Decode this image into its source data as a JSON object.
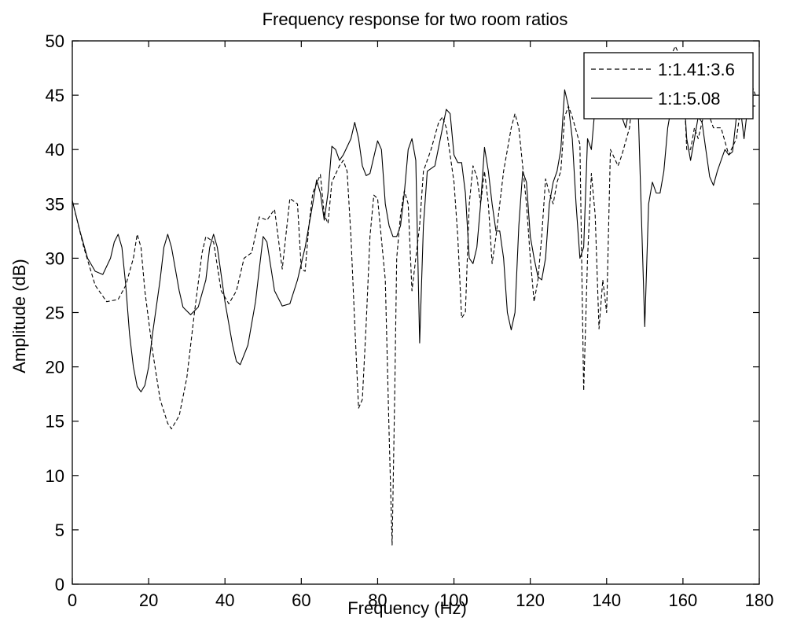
{
  "chart_data": {
    "type": "line",
    "title": "Frequency response for two room ratios",
    "xlabel": "Frequency (Hz)",
    "ylabel": "Amplitude (dB)",
    "xlim": [
      0,
      180
    ],
    "ylim": [
      0,
      50
    ],
    "xticks": [
      0,
      20,
      40,
      60,
      80,
      100,
      120,
      140,
      160,
      180
    ],
    "yticks": [
      0,
      5,
      10,
      15,
      20,
      25,
      30,
      35,
      40,
      45,
      50
    ],
    "grid": false,
    "legend_position": "top-right",
    "series": [
      {
        "name": "1:1.41:3.6",
        "style": "dashed",
        "color": "#000000",
        "points": [
          [
            0,
            35.3
          ],
          [
            3,
            31
          ],
          [
            6,
            27.5
          ],
          [
            9,
            26
          ],
          [
            12,
            26.2
          ],
          [
            14,
            27.5
          ],
          [
            16,
            30
          ],
          [
            17,
            32.2
          ],
          [
            18,
            31
          ],
          [
            19,
            27
          ],
          [
            21,
            21.5
          ],
          [
            23,
            17
          ],
          [
            25,
            14.8
          ],
          [
            26,
            14.3
          ],
          [
            28,
            15.5
          ],
          [
            30,
            19
          ],
          [
            32,
            25
          ],
          [
            34,
            30.5
          ],
          [
            35,
            32
          ],
          [
            37,
            31.5
          ],
          [
            39,
            27
          ],
          [
            41,
            25.8
          ],
          [
            43,
            27
          ],
          [
            45,
            30
          ],
          [
            47,
            30.5
          ],
          [
            49,
            33.8
          ],
          [
            51,
            33.5
          ],
          [
            53,
            34.5
          ],
          [
            55,
            29
          ],
          [
            57,
            35.5
          ],
          [
            59,
            35
          ],
          [
            60,
            29
          ],
          [
            61,
            28.8
          ],
          [
            62,
            33
          ],
          [
            63,
            36
          ],
          [
            65,
            37.7
          ],
          [
            66,
            34
          ],
          [
            67,
            33.2
          ],
          [
            68,
            37
          ],
          [
            70,
            38.5
          ],
          [
            71,
            39
          ],
          [
            72,
            38
          ],
          [
            73,
            32
          ],
          [
            74,
            24
          ],
          [
            75,
            16.2
          ],
          [
            76,
            17
          ],
          [
            77,
            24
          ],
          [
            78,
            32
          ],
          [
            79,
            35.8
          ],
          [
            80,
            35.5
          ],
          [
            82,
            28
          ],
          [
            83,
            14
          ],
          [
            83.8,
            3.6
          ],
          [
            84.5,
            18
          ],
          [
            85,
            30
          ],
          [
            86,
            34
          ],
          [
            87,
            36.2
          ],
          [
            88,
            35
          ],
          [
            89,
            27
          ],
          [
            90,
            30
          ],
          [
            91,
            33
          ],
          [
            92,
            38
          ],
          [
            94,
            40
          ],
          [
            96,
            42.5
          ],
          [
            97,
            43
          ],
          [
            98,
            42
          ],
          [
            100,
            37
          ],
          [
            101,
            32
          ],
          [
            102,
            24.5
          ],
          [
            103,
            25
          ],
          [
            104,
            35
          ],
          [
            105,
            38.5
          ],
          [
            106,
            37.5
          ],
          [
            107,
            35
          ],
          [
            108,
            38
          ],
          [
            109,
            35
          ],
          [
            110,
            29.5
          ],
          [
            111,
            32
          ],
          [
            113,
            38
          ],
          [
            115,
            42
          ],
          [
            116,
            43.3
          ],
          [
            117,
            42
          ],
          [
            119,
            35
          ],
          [
            120,
            30
          ],
          [
            121,
            26
          ],
          [
            122,
            28
          ],
          [
            123,
            32
          ],
          [
            124,
            37.3
          ],
          [
            125,
            36
          ],
          [
            126,
            35
          ],
          [
            127,
            37
          ],
          [
            128,
            38
          ],
          [
            129,
            43
          ],
          [
            130,
            44
          ],
          [
            131,
            43
          ],
          [
            133,
            40.5
          ],
          [
            134,
            17.8
          ],
          [
            135,
            30
          ],
          [
            136,
            37.8
          ],
          [
            137,
            34
          ],
          [
            138,
            23.5
          ],
          [
            139,
            28
          ],
          [
            140,
            25
          ],
          [
            141,
            40
          ],
          [
            143,
            38.5
          ],
          [
            144,
            39.5
          ],
          [
            146,
            42
          ],
          [
            147,
            45.5
          ],
          [
            148,
            44
          ],
          [
            150,
            43.5
          ],
          [
            152,
            45.5
          ],
          [
            154,
            45
          ],
          [
            156,
            48
          ],
          [
            158,
            49.5
          ],
          [
            160,
            48
          ],
          [
            161,
            40
          ],
          [
            162,
            40
          ],
          [
            163,
            42
          ],
          [
            164,
            41
          ],
          [
            166,
            44
          ],
          [
            168,
            42
          ],
          [
            170,
            42
          ],
          [
            172,
            39.5
          ],
          [
            174,
            41
          ],
          [
            175,
            43.5
          ],
          [
            176,
            45
          ],
          [
            177,
            44.5
          ],
          [
            178,
            46
          ],
          [
            179,
            45
          ]
        ]
      },
      {
        "name": "1:1:5.08",
        "style": "solid",
        "color": "#000000",
        "points": [
          [
            0,
            35.3
          ],
          [
            2,
            32.5
          ],
          [
            4,
            30
          ],
          [
            6,
            28.8
          ],
          [
            8,
            28.5
          ],
          [
            10,
            30
          ],
          [
            11,
            31.5
          ],
          [
            12,
            32.2
          ],
          [
            13,
            31
          ],
          [
            14,
            27.5
          ],
          [
            15,
            23
          ],
          [
            16,
            20
          ],
          [
            17,
            18.2
          ],
          [
            18,
            17.7
          ],
          [
            19,
            18.3
          ],
          [
            20,
            20
          ],
          [
            21,
            23
          ],
          [
            23,
            28
          ],
          [
            24,
            31
          ],
          [
            25,
            32.2
          ],
          [
            26,
            31
          ],
          [
            27,
            29
          ],
          [
            28,
            27
          ],
          [
            29,
            25.5
          ],
          [
            31,
            24.8
          ],
          [
            33,
            25.5
          ],
          [
            35,
            28
          ],
          [
            36,
            31
          ],
          [
            37,
            32.2
          ],
          [
            38,
            31
          ],
          [
            40,
            26
          ],
          [
            42,
            22
          ],
          [
            43,
            20.5
          ],
          [
            44,
            20.2
          ],
          [
            46,
            22
          ],
          [
            48,
            26
          ],
          [
            49,
            29
          ],
          [
            50,
            32
          ],
          [
            51,
            31.5
          ],
          [
            53,
            27
          ],
          [
            55,
            25.6
          ],
          [
            57,
            25.8
          ],
          [
            59,
            28
          ],
          [
            61,
            31
          ],
          [
            63,
            35
          ],
          [
            64,
            37.2
          ],
          [
            65,
            36
          ],
          [
            66,
            33.5
          ],
          [
            67,
            36
          ],
          [
            68,
            40.3
          ],
          [
            69,
            40
          ],
          [
            70,
            39
          ],
          [
            71,
            39.5
          ],
          [
            73,
            41
          ],
          [
            74,
            42.5
          ],
          [
            75,
            41
          ],
          [
            76,
            38.5
          ],
          [
            77,
            37.6
          ],
          [
            78,
            37.8
          ],
          [
            80,
            40.8
          ],
          [
            81,
            40
          ],
          [
            82,
            35
          ],
          [
            83,
            33
          ],
          [
            84,
            32
          ],
          [
            85,
            32
          ],
          [
            86,
            33
          ],
          [
            87,
            36
          ],
          [
            88,
            40
          ],
          [
            89,
            41
          ],
          [
            90,
            39
          ],
          [
            91,
            22.2
          ],
          [
            92,
            33
          ],
          [
            93,
            38
          ],
          [
            95,
            38.5
          ],
          [
            97,
            42
          ],
          [
            98,
            43.7
          ],
          [
            99,
            43.3
          ],
          [
            100,
            39.5
          ],
          [
            101,
            38.8
          ],
          [
            102,
            38.8
          ],
          [
            103,
            36
          ],
          [
            104,
            30
          ],
          [
            105,
            29.5
          ],
          [
            106,
            31
          ],
          [
            107,
            35
          ],
          [
            108,
            40.2
          ],
          [
            109,
            38
          ],
          [
            110,
            35
          ],
          [
            111,
            32.5
          ],
          [
            112,
            32.5
          ],
          [
            113,
            30
          ],
          [
            114,
            25
          ],
          [
            115,
            23.4
          ],
          [
            116,
            25
          ],
          [
            117,
            33
          ],
          [
            118,
            38
          ],
          [
            119,
            37
          ],
          [
            120,
            32
          ],
          [
            121,
            30
          ],
          [
            122,
            28.3
          ],
          [
            123,
            28
          ],
          [
            124,
            30
          ],
          [
            125,
            35
          ],
          [
            126,
            37
          ],
          [
            127,
            38
          ],
          [
            128,
            40
          ],
          [
            129,
            45.5
          ],
          [
            130,
            44
          ],
          [
            131,
            41
          ],
          [
            132,
            35
          ],
          [
            133,
            30
          ],
          [
            134,
            31
          ],
          [
            135,
            41
          ],
          [
            136,
            40
          ],
          [
            137,
            44
          ],
          [
            139,
            47.5
          ],
          [
            140,
            46
          ],
          [
            141,
            44
          ],
          [
            142,
            43
          ],
          [
            143,
            44
          ],
          [
            145,
            42
          ],
          [
            146,
            44
          ],
          [
            148,
            47
          ],
          [
            150,
            23.7
          ],
          [
            151,
            35
          ],
          [
            152,
            37
          ],
          [
            153,
            36
          ],
          [
            154,
            36
          ],
          [
            155,
            38
          ],
          [
            156,
            42
          ],
          [
            157,
            44
          ],
          [
            159,
            43.5
          ],
          [
            160,
            46.5
          ],
          [
            161,
            41
          ],
          [
            162,
            39
          ],
          [
            163,
            41
          ],
          [
            164,
            43
          ],
          [
            165,
            42.5
          ],
          [
            166,
            40
          ],
          [
            167,
            37.5
          ],
          [
            168,
            36.7
          ],
          [
            169,
            38
          ],
          [
            170,
            39
          ],
          [
            171,
            40
          ],
          [
            172,
            39.5
          ],
          [
            173,
            39.8
          ],
          [
            174,
            43
          ],
          [
            175,
            44
          ],
          [
            176,
            41
          ],
          [
            177,
            44
          ],
          [
            178,
            44
          ],
          [
            179,
            44
          ]
        ]
      }
    ]
  }
}
